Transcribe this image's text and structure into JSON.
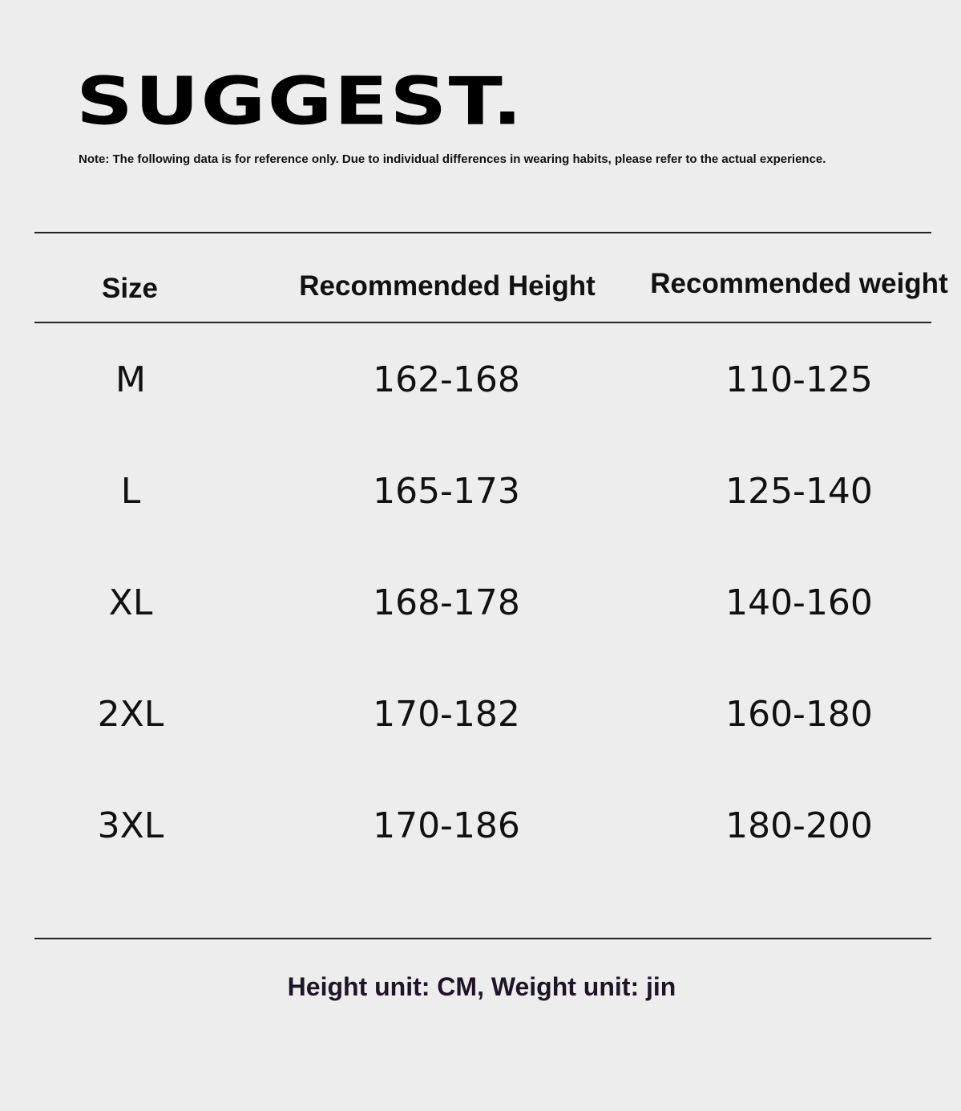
{
  "title": "SUGGEST.",
  "note": "Note: The following data is for reference only. Due to individual differences in wearing habits, please refer to the actual experience.",
  "table": {
    "headers": [
      "Size",
      "Recommended Height",
      "Recommended weight"
    ],
    "rows": [
      [
        "M",
        "162-168",
        "110-125"
      ],
      [
        "L",
        "165-173",
        "125-140"
      ],
      [
        "XL",
        "168-178",
        "140-160"
      ],
      [
        "2XL",
        "170-182",
        "160-180"
      ],
      [
        "3XL",
        "170-186",
        "180-200"
      ]
    ]
  },
  "footer": "Height unit: CM, Weight unit: jin"
}
